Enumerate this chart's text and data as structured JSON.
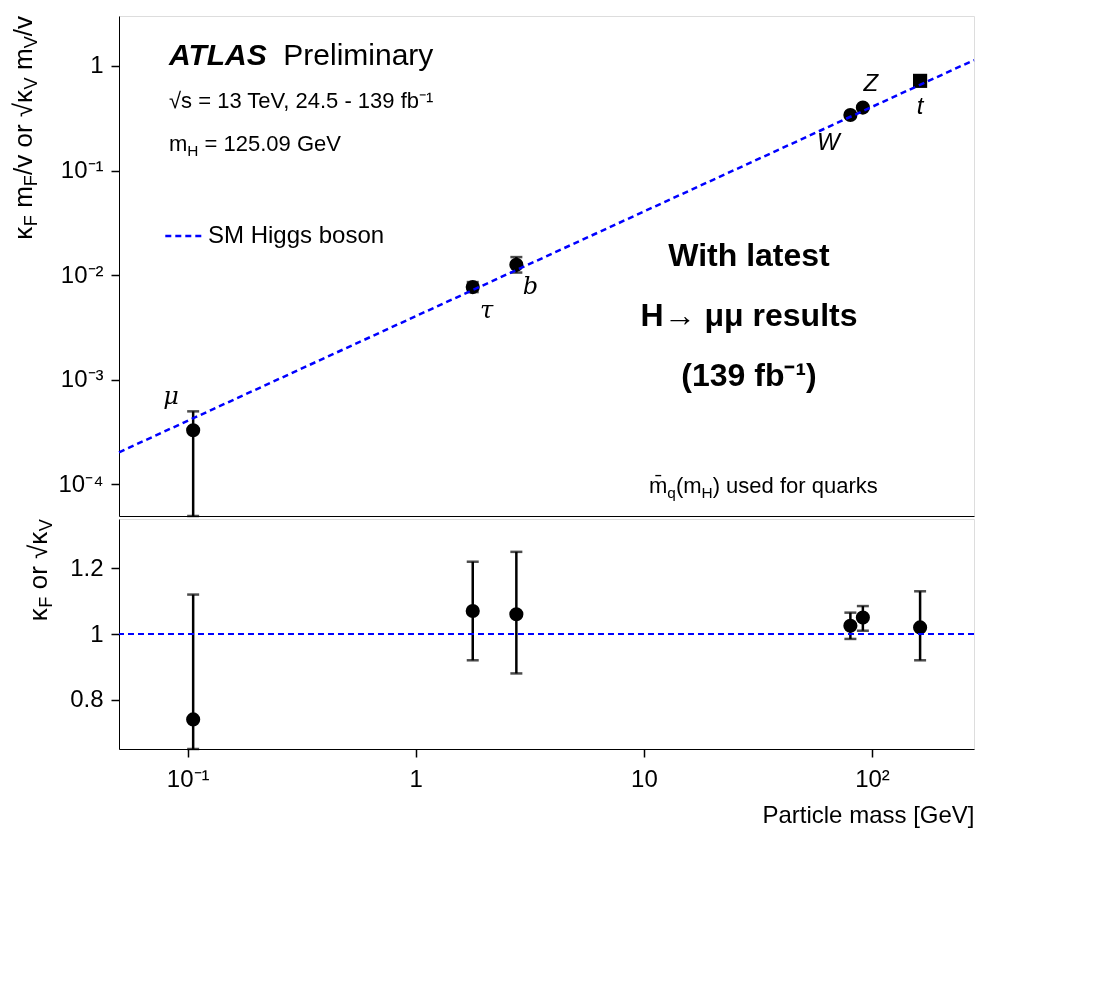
{
  "chart_data": [
    {
      "type": "scatter",
      "ylabel": "κ$_{F}$ m$_{F}$/v or √κ$_{V}$ m$_{V}$/v",
      "xlim": [
        0.05,
        280
      ],
      "ylim": [
        5e-05,
        3
      ],
      "yticks": [
        {
          "value": 0.0001,
          "label": "10⁻⁴"
        },
        {
          "value": 0.001,
          "label": "10⁻³"
        },
        {
          "value": 0.01,
          "label": "10⁻²"
        },
        {
          "value": 0.1,
          "label": "10⁻¹"
        },
        1
      ],
      "log": "xy",
      "tick_labels": "y",
      "legend": "top left",
      "grid": false,
      "series": [
        {
          "color": "#000000",
          "marker": "circle",
          "x": [
            0.1057,
            1.777,
            2.76,
            80.4,
            91.19
          ],
          "values": [
            0.00033,
            0.0077,
            0.0126,
            0.34,
            0.4
          ],
          "errors": [
            [
              5e-05,
              0.0005
            ],
            [
              0.0069,
              0.0086
            ],
            [
              0.0106,
              0.0149
            ],
            null,
            null
          ]
        },
        {
          "color": "#000000",
          "marker": "square",
          "x": [
            162.5
          ],
          "values": [
            0.72
          ],
          "errors": [
            null
          ]
        },
        {
          "name": "SM Higgs boson",
          "type": "line",
          "color": "#0000ff",
          "line_style": "dashed",
          "marker": "none",
          "x": [
            0.05,
            280
          ],
          "values": [
            0.000203,
            1.137
          ]
        }
      ],
      "annotations": [
        "ATLAS Preliminary",
        "√s = 13 TeV, 24.5 - 139 fb⁻¹",
        "m$_{H}$ = 125.09 GeV",
        "m̄$_{q}$(m$_{H}$) used for quarks",
        "With latest\nH→ μμ results\n(139 fb⁻¹)",
        {
          "text": "μ",
          "x": 0.1057,
          "y": 0.0005
        },
        {
          "text": "τ",
          "x": 1.777,
          "y": 0.0077
        },
        {
          "text": "b",
          "x": 2.76,
          "y": 0.0126
        },
        {
          "text": "W",
          "x": 80.4,
          "y": 0.34
        },
        {
          "text": "Z",
          "x": 91.19,
          "y": 0.4
        },
        {
          "text": "t",
          "x": 162.5,
          "y": 0.72
        }
      ]
    },
    {
      "type": "scatter",
      "xlabel": "Particle mass [GeV]",
      "ylabel": "κ$_{F}$ or √κ$_{V}$",
      "xlim": [
        0.05,
        280
      ],
      "ylim": [
        0.65,
        1.35
      ],
      "xticks": [
        {
          "value": 0.1,
          "label": "10⁻¹"
        },
        1,
        10,
        {
          "value": 100,
          "label": "10²"
        }
      ],
      "yticks": [
        0.8,
        1,
        1.2
      ],
      "log": "x",
      "grid": false,
      "marker": "circle",
      "x": [
        0.1057,
        1.777,
        2.76,
        80.4,
        91.19,
        162.5
      ],
      "series": [
        {
          "color": "#000000",
          "values": [
            0.74,
            1.07,
            1.06,
            1.025,
            1.05,
            1.02
          ],
          "errors": [
            [
              0.65,
              1.12
            ],
            [
              0.92,
              1.22
            ],
            [
              0.88,
              1.25
            ],
            [
              0.985,
              1.065
            ],
            [
              1.01,
              1.085
            ],
            [
              0.92,
              1.13
            ]
          ]
        }
      ],
      "ref_lines": [
        {
          "axis": "y",
          "value": 1,
          "color": "#0000ff",
          "line_style": "dashed"
        }
      ]
    }
  ]
}
